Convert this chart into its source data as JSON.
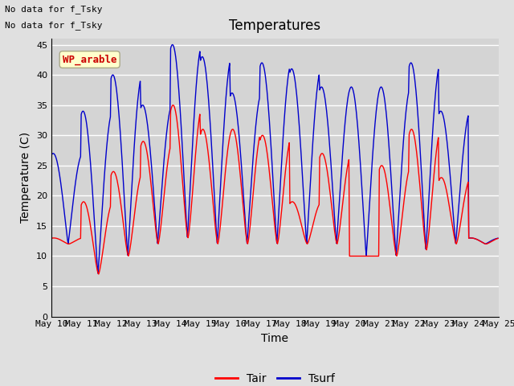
{
  "title": "Temperatures",
  "xlabel": "Time",
  "ylabel": "Temperature (C)",
  "legend_labels": [
    "Tair",
    "Tsurf"
  ],
  "legend_colors": [
    "#ff0000",
    "#0000cc"
  ],
  "text_no_data_1": "No data for f_Tsky",
  "text_no_data_2": "No data for f_Tsky",
  "wp_label": "WP_arable",
  "ylim": [
    0,
    46
  ],
  "yticks": [
    0,
    5,
    10,
    15,
    20,
    25,
    30,
    35,
    40,
    45
  ],
  "background_color": "#e0e0e0",
  "plot_bg_color": "#d4d4d4",
  "grid_color": "#ffffff",
  "title_fontsize": 12,
  "axis_fontsize": 10,
  "tick_fontsize": 8,
  "num_days": 15,
  "start_day": 10,
  "tair_peaks": [
    13,
    19,
    24,
    29,
    35,
    31,
    31,
    30,
    19,
    27,
    10,
    25,
    31,
    23,
    13
  ],
  "tsurf_peaks": [
    27,
    34,
    40,
    35,
    45,
    43,
    37,
    42,
    41,
    38,
    38,
    38,
    42,
    34,
    13
  ],
  "day_mins": [
    12,
    7,
    10,
    12,
    13,
    12,
    12,
    12,
    12,
    12,
    10,
    10,
    11,
    12,
    12
  ]
}
